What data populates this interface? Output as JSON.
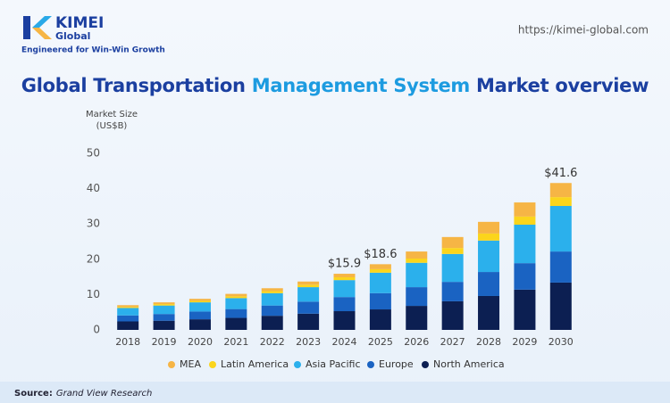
{
  "header": {
    "brand": "KIMEI",
    "brand_sub": "Global",
    "tagline": "Engineered for Win-Win Growth",
    "url": "https://kimei-global.com"
  },
  "chart_data": {
    "type": "stacked-bar",
    "title_parts": [
      "Global Transportation",
      "Management System",
      "Market overview"
    ],
    "y_label": [
      "Market Size",
      "(US$B)"
    ],
    "categories": [
      "2018",
      "2019",
      "2020",
      "2021",
      "2022",
      "2023",
      "2024",
      "2025",
      "2026",
      "2027",
      "2028",
      "2029",
      "2030"
    ],
    "series": [
      {
        "name": "MEA",
        "color": "#f6b545",
        "values": [
          0.5,
          0.5,
          0.6,
          0.7,
          0.8,
          0.9,
          1.0,
          1.4,
          2.0,
          3.1,
          3.3,
          4.0,
          4.0
        ]
      },
      {
        "name": "Latin America",
        "color": "#fbd51c",
        "values": [
          0.3,
          0.4,
          0.4,
          0.5,
          0.6,
          0.7,
          0.8,
          1.0,
          1.2,
          1.7,
          2.0,
          2.3,
          2.5
        ]
      },
      {
        "name": "Asia Pacific",
        "color": "#2bb0ec",
        "values": [
          2.1,
          2.4,
          2.6,
          3.1,
          3.5,
          4.1,
          4.8,
          5.8,
          6.9,
          7.9,
          8.9,
          10.9,
          12.9
        ]
      },
      {
        "name": "Europe",
        "color": "#1a63c2",
        "values": [
          1.7,
          1.9,
          2.2,
          2.5,
          2.9,
          3.4,
          4.0,
          4.6,
          5.3,
          5.5,
          6.8,
          7.5,
          8.8
        ]
      },
      {
        "name": "North America",
        "color": "#0c1f52",
        "values": [
          2.4,
          2.6,
          3.0,
          3.4,
          4.0,
          4.6,
          5.3,
          5.8,
          6.8,
          8.1,
          9.6,
          11.4,
          13.4
        ]
      }
    ],
    "annotations": [
      {
        "category": "2024",
        "value": 15.9,
        "label": "$15.9"
      },
      {
        "category": "2025",
        "value": 18.6,
        "label": "$18.6"
      },
      {
        "category": "2030",
        "value": 41.6,
        "label": "$41.6"
      }
    ],
    "ylim": [
      0,
      50
    ],
    "yticks": [
      0,
      10,
      20,
      30,
      40,
      50
    ],
    "grid": false
  },
  "source": {
    "label": "Source:",
    "text": "Grand View Research"
  }
}
